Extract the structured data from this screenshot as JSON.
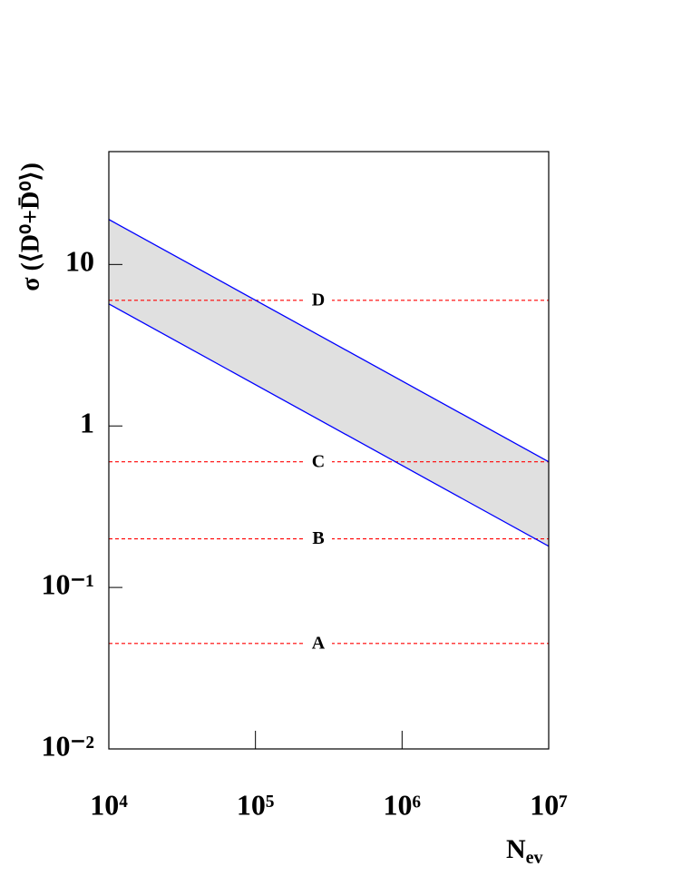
{
  "chart_data": {
    "type": "band",
    "y_label": "σ (⟨D⁰+D̄⁰⟩)",
    "x_label": {
      "text": "N",
      "subscript": "ev"
    },
    "x": [
      10000,
      10000000
    ],
    "xlim": [
      10000,
      10000000
    ],
    "xlog": true,
    "xticks": [
      {
        "value": 10000,
        "label": "10⁴"
      },
      {
        "value": 100000,
        "label": "10⁵"
      },
      {
        "value": 1000000,
        "label": "10⁶"
      },
      {
        "value": 10000000,
        "label": "10⁷"
      }
    ],
    "ylim": [
      0.01,
      50
    ],
    "ylog": true,
    "yticks": [
      {
        "value": 0.01,
        "label": "10⁻²"
      },
      {
        "value": 0.1,
        "label": "10⁻¹"
      },
      1,
      10
    ],
    "band_color": "#e0e0e0",
    "series": [
      {
        "color": "#0000ff",
        "values": [
          19,
          0.6
        ]
      },
      {
        "color": "#0000ff",
        "values": [
          5.7,
          0.18
        ]
      }
    ],
    "ref_lines": [
      {
        "name": "D",
        "value": 6,
        "color": "#ff0000"
      },
      {
        "name": "C",
        "value": 0.6,
        "color": "#ff0000"
      },
      {
        "name": "B",
        "value": 0.2,
        "color": "#ff0000"
      },
      {
        "name": "A",
        "value": 0.045,
        "color": "#ff0000"
      }
    ]
  }
}
